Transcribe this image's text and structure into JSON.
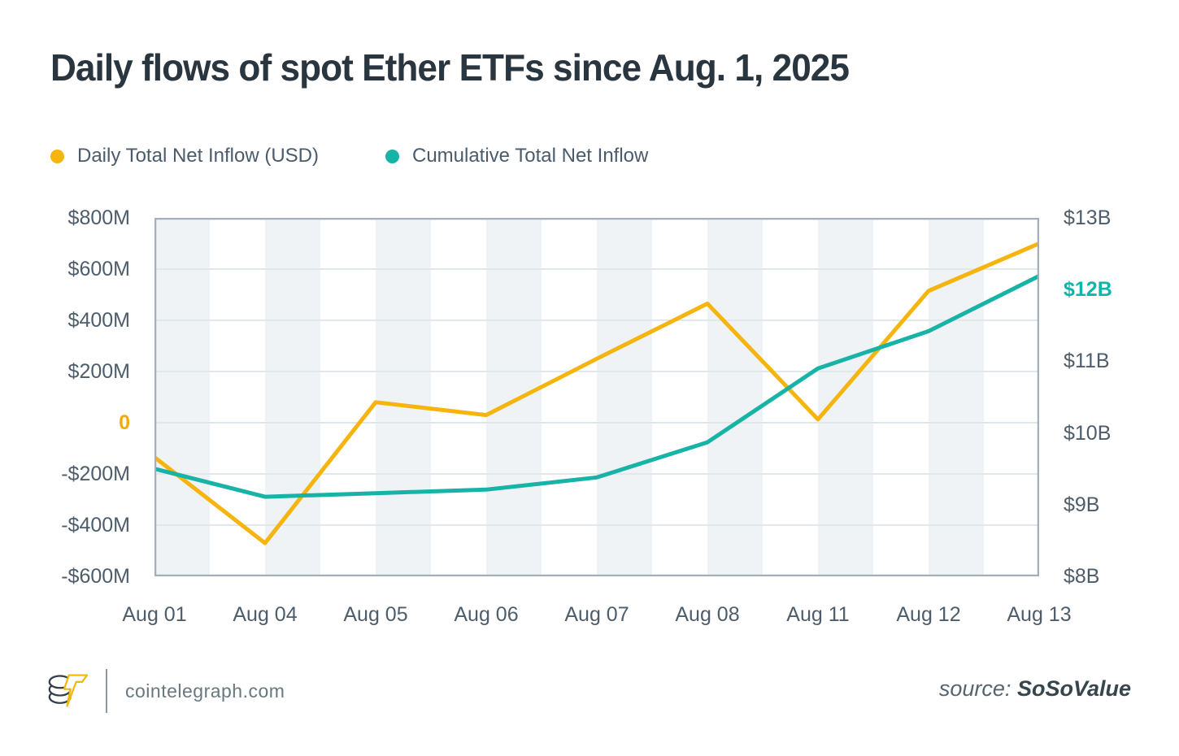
{
  "title": "Daily flows of spot Ether ETFs since Aug. 1, 2025",
  "legend": {
    "items": [
      {
        "label": "Daily Total Net Inflow (USD)",
        "color": "#f5b40e"
      },
      {
        "label": "Cumulative Total Net Inflow",
        "color": "#17b3a7"
      }
    ]
  },
  "chart_data": {
    "type": "line",
    "title": "Daily flows of spot Ether ETFs since Aug. 1, 2025",
    "categories": [
      "Aug 01",
      "Aug 04",
      "Aug 05",
      "Aug 06",
      "Aug 07",
      "Aug 08",
      "Aug 11",
      "Aug 12",
      "Aug 13"
    ],
    "series": [
      {
        "name": "Daily Total Net Inflow (USD)",
        "axis": "left",
        "unit": "USD millions",
        "color": "#f5b40e",
        "values": [
          -135,
          -470,
          80,
          30,
          250,
          465,
          13,
          515,
          700
        ]
      },
      {
        "name": "Cumulative Total Net Inflow",
        "axis": "right",
        "unit": "USD billions",
        "color": "#17b3a7",
        "values": [
          9.5,
          9.11,
          9.16,
          9.21,
          9.38,
          9.87,
          10.9,
          11.42,
          12.19
        ]
      }
    ],
    "y_left": {
      "min": -600,
      "max": 800,
      "tick_labels": [
        "$800M",
        "$600M",
        "$400M",
        "$200M",
        "0",
        "-$200M",
        "-$400M",
        "-$600M"
      ],
      "highlight_index": 4,
      "highlight_color": "#f2ab05"
    },
    "y_right": {
      "min": 8,
      "max": 13,
      "tick_labels": [
        "$13B",
        "$12B",
        "$11B",
        "$10B",
        "$9B",
        "$8B"
      ],
      "highlight_index": 1,
      "highlight_color": "#10b5a9"
    },
    "grid": {
      "horizontal_gridlines": true,
      "vertical_bands": 16,
      "band_color": "#eff3f6",
      "gridline_color": "#e1e8ec",
      "border_color": "#a3b0bc"
    },
    "legend_position": "top-left"
  },
  "footer": {
    "logo": "cointelegraph-coin-bolt-logo",
    "site": "cointelegraph.com",
    "source_label": "source:",
    "source_value": "SoSoValue"
  }
}
